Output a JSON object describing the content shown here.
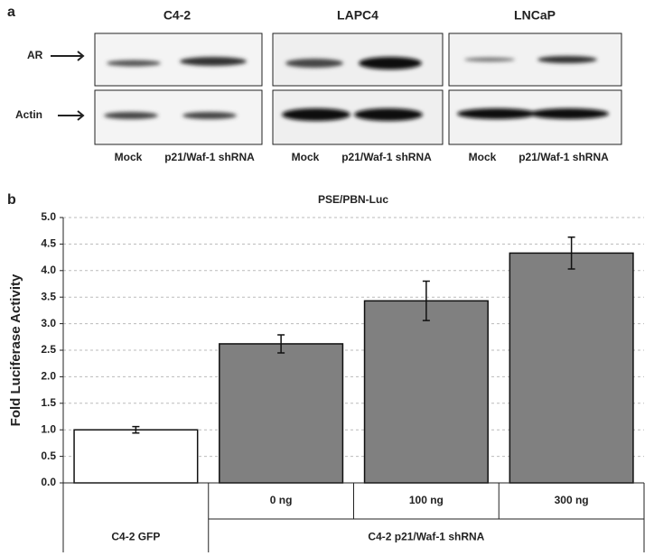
{
  "panel_a": {
    "label": "a",
    "row_labels": [
      "AR",
      "Actin"
    ],
    "blots": [
      {
        "title": "C4-2",
        "lanes": [
          "Mock",
          "p21/Waf-1 shRNA"
        ]
      },
      {
        "title": "LAPC4",
        "lanes": [
          "Mock",
          "p21/Waf-1 shRNA"
        ]
      },
      {
        "title": "LNCaP",
        "lanes": [
          "Mock",
          "p21/Waf-1 shRNA"
        ]
      }
    ]
  },
  "chart_data": {
    "type": "bar",
    "panel_label": "b",
    "title": "PSE/PBN-Luc",
    "y_label": "Fold Luciferase Activity",
    "categories": [
      "C4-2 GFP",
      "0 ng",
      "100 ng",
      "300 ng"
    ],
    "group_label": "C4-2 p21/Waf-1 shRNA",
    "values": [
      1.0,
      2.62,
      3.43,
      4.33
    ],
    "errors": [
      0.06,
      0.17,
      0.37,
      0.3
    ],
    "colors": [
      "#ffffff",
      "#808080",
      "#808080",
      "#808080"
    ],
    "ylim": [
      0,
      5
    ],
    "yticks": [
      {
        "value": 0,
        "label": "0.0"
      },
      0.5,
      {
        "value": 1,
        "label": "1.0"
      },
      1.5,
      {
        "value": 2,
        "label": "2.0"
      },
      2.5,
      {
        "value": 3,
        "label": "3.0"
      },
      3.5,
      {
        "value": 4,
        "label": "4.0"
      },
      4.5,
      {
        "value": 5,
        "label": "5.0"
      }
    ],
    "grid": true
  }
}
